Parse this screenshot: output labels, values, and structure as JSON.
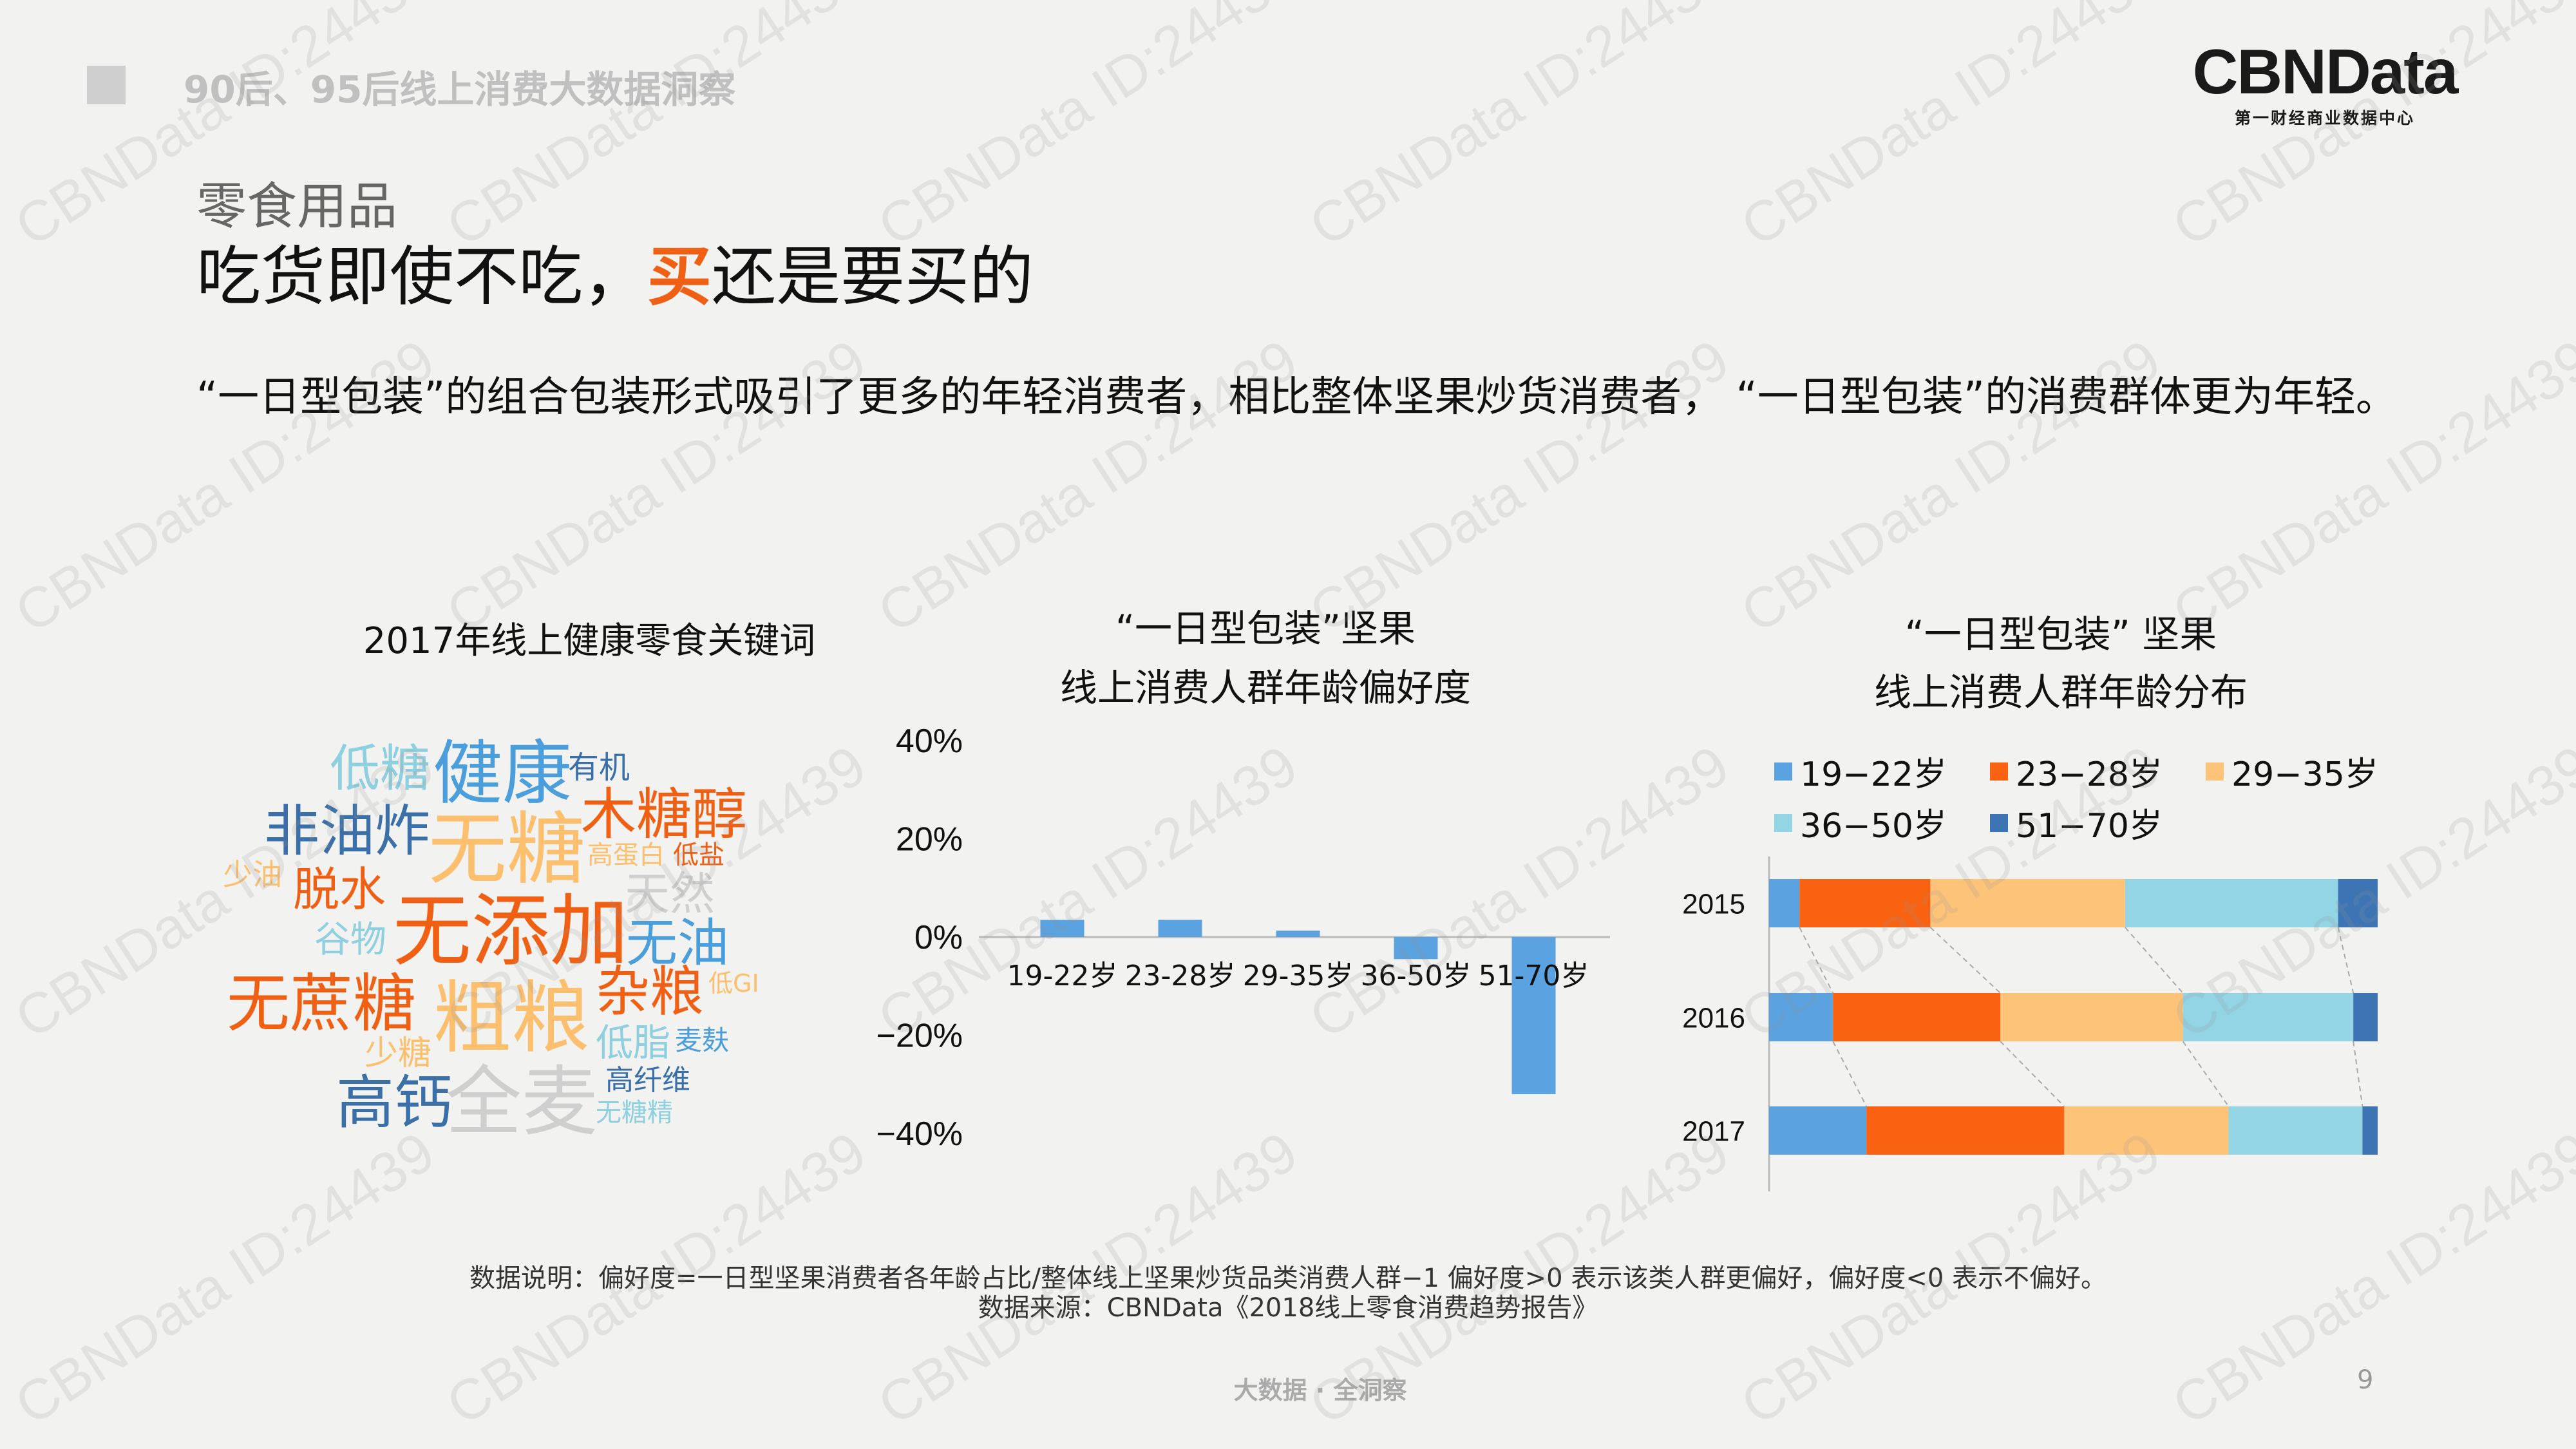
{
  "header": {
    "report_title": "90后、95后线上消费大数据洞察",
    "logo_text": "CBNData",
    "logo_sub": "第一财经商业数据中心"
  },
  "slide": {
    "category": "零食用品",
    "headline_part1": "吃货即使不吃，",
    "headline_highlight": "买",
    "headline_part2": "还是要买的",
    "description": "“一日型包装”的组合包装形式吸引了更多的年轻消费者，相比整体坚果炒货消费者，  “一日型包装”的消费群体更为年轻。"
  },
  "word_cloud": {
    "title": "2017年线上健康零食关键词",
    "words": [
      {
        "text": "低糖",
        "color": "#8ecfe0"
      },
      {
        "text": "健康",
        "color": "#4a9edb"
      },
      {
        "text": "有机",
        "color": "#3a6fa8"
      },
      {
        "text": "非油炸",
        "color": "#3a6fa8"
      },
      {
        "text": "无糖",
        "color": "#fbbf6e"
      },
      {
        "text": "木糖醇",
        "color": "#f06014"
      },
      {
        "text": "少油",
        "color": "#fbbf6e"
      },
      {
        "text": "高蛋白",
        "color": "#fbbf6e"
      },
      {
        "text": "低盐",
        "color": "#f06014"
      },
      {
        "text": "脱水",
        "color": "#f06014"
      },
      {
        "text": "天然",
        "color": "#cfcfcf"
      },
      {
        "text": "谷物",
        "color": "#8ecfe0"
      },
      {
        "text": "无添加",
        "color": "#f06014"
      },
      {
        "text": "无油",
        "color": "#4a9edb"
      },
      {
        "text": "无蔗糖",
        "color": "#f06014"
      },
      {
        "text": "粗粮",
        "color": "#fbbf6e"
      },
      {
        "text": "杂粮",
        "color": "#f06014"
      },
      {
        "text": "低GI",
        "color": "#fbbf6e"
      },
      {
        "text": "少糖",
        "color": "#fbbf6e"
      },
      {
        "text": "低脂",
        "color": "#8ecfe0"
      },
      {
        "text": "麦麸",
        "color": "#4a9edb"
      },
      {
        "text": "高纤维",
        "color": "#3a6fa8"
      },
      {
        "text": "高钙",
        "color": "#3a6fa8"
      },
      {
        "text": "全麦",
        "color": "#cfcfcf"
      },
      {
        "text": "无糖精",
        "color": "#8ecfe0"
      }
    ]
  },
  "chart_data": [
    {
      "type": "bar",
      "title": "“一日型包装”坚果\n线上消费人群年龄偏好度",
      "categories": [
        "19-22岁",
        "23-28岁",
        "29-35岁",
        "36-50岁",
        "51-70岁"
      ],
      "values": [
        0.035,
        0.035,
        0.013,
        -0.045,
        -0.32
      ],
      "ylim": [
        -0.4,
        0.4
      ],
      "ytick_labels": [
        "40%",
        "20%",
        "0%",
        "−20%",
        "−40%"
      ],
      "color": "#5aa2e0"
    },
    {
      "type": "bar",
      "stacked": true,
      "orientation": "horizontal",
      "title": "“一日型包装” 坚果\n线上消费人群年龄分布",
      "categories": [
        "2015",
        "2016",
        "2017"
      ],
      "series": [
        {
          "name": "19−22岁",
          "color": "#5aa2e0",
          "values": [
            0.05,
            0.105,
            0.16
          ]
        },
        {
          "name": "23−28岁",
          "color": "#f96211",
          "values": [
            0.215,
            0.275,
            0.325
          ]
        },
        {
          "name": "29−35岁",
          "color": "#fdc379",
          "values": [
            0.32,
            0.3,
            0.27
          ]
        },
        {
          "name": "36−50岁",
          "color": "#93d5e5",
          "values": [
            0.35,
            0.28,
            0.22
          ]
        },
        {
          "name": "51−70岁",
          "color": "#3d75b4",
          "values": [
            0.065,
            0.04,
            0.025
          ]
        }
      ],
      "legend": "top",
      "xlim": [
        0,
        1
      ]
    }
  ],
  "notes": {
    "line1": "数据说明：偏好度=一日型坚果消费者各年龄占比/整体线上坚果炒货品类消费人群−1 偏好度>0 表示该类人群更偏好，偏好度<0 表示不偏好。",
    "line2": "数据来源：CBNData《2018线上零食消费趋势报告》"
  },
  "footer": {
    "text": "大数据 · 全洞察",
    "page_number": "9"
  },
  "watermark": {
    "text": "CBNData ID:24439"
  }
}
